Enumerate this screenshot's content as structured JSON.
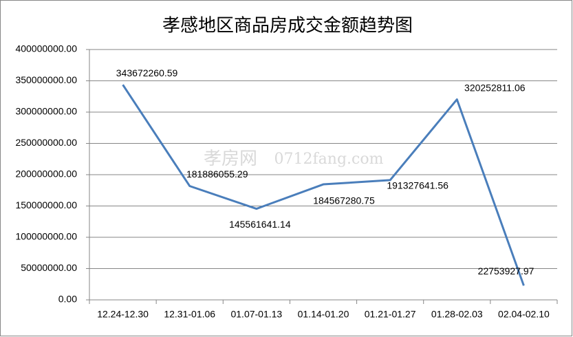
{
  "chart_data": {
    "type": "line",
    "title": "孝感地区商品房成交金额趋势图",
    "watermark": [
      "孝房网",
      "0712fang.com"
    ],
    "categories": [
      "12.24-12.30",
      "12.31-01.06",
      "01.07-01.13",
      "01.14-01.20",
      "01.21-01.27",
      "01.28-02.03",
      "02.04-02.10"
    ],
    "series": [
      {
        "color": "#4a7ebb",
        "values": [
          343672260.59,
          181886055.29,
          145561641.14,
          184567280.75,
          191327641.56,
          320252811.06,
          22753927.97
        ]
      }
    ],
    "ylim": [
      0,
      400000000
    ],
    "yticks": [
      {
        "value": 0,
        "label": "0.00"
      },
      {
        "value": 50000000,
        "label": "50000000.00"
      },
      {
        "value": 100000000,
        "label": "100000000.00"
      },
      {
        "value": 150000000,
        "label": "150000000.00"
      },
      {
        "value": 200000000,
        "label": "200000000.00"
      },
      {
        "value": 250000000,
        "label": "250000000.00"
      },
      {
        "value": 300000000,
        "label": "300000000.00"
      },
      {
        "value": 350000000,
        "label": "350000000.00"
      },
      {
        "value": 400000000,
        "label": "400000000.00"
      }
    ],
    "grid": true
  }
}
